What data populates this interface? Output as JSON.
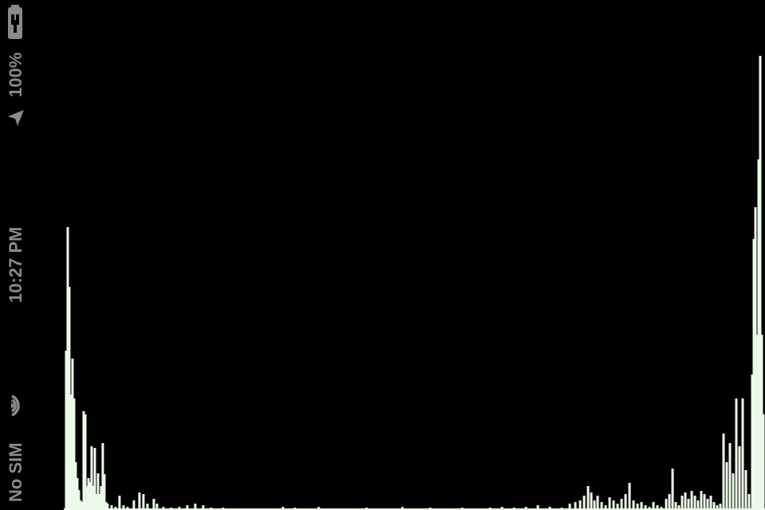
{
  "status_bar": {
    "carrier": "No SIM",
    "time": "10:27 PM",
    "battery": "100%",
    "icons": [
      "wifi-icon",
      "location-icon",
      "battery-charging-icon"
    ],
    "text_color": "#8a8a8a"
  },
  "colors": {
    "background": "#000000",
    "bar": "#ecfbe9"
  },
  "chart_data": {
    "type": "bar",
    "title": "",
    "xlabel": "",
    "ylabel": "",
    "ylim": [
      0,
      640
    ],
    "bar_values": [
      [
        83,
        200
      ],
      [
        85,
        355
      ],
      [
        87,
        280
      ],
      [
        89,
        145
      ],
      [
        91,
        190
      ],
      [
        93,
        140
      ],
      [
        95,
        60
      ],
      [
        97,
        40
      ],
      [
        99,
        25
      ],
      [
        101,
        12
      ],
      [
        103,
        10
      ],
      [
        105,
        124
      ],
      [
        107,
        120
      ],
      [
        109,
        30
      ],
      [
        111,
        40
      ],
      [
        113,
        35
      ],
      [
        115,
        80
      ],
      [
        117,
        30
      ],
      [
        119,
        78
      ],
      [
        121,
        20
      ],
      [
        123,
        46
      ],
      [
        125,
        20
      ],
      [
        127,
        30
      ],
      [
        129,
        84
      ],
      [
        131,
        45
      ],
      [
        133,
        10
      ],
      [
        135,
        8
      ],
      [
        140,
        6
      ],
      [
        145,
        4
      ],
      [
        150,
        18
      ],
      [
        155,
        6
      ],
      [
        160,
        4
      ],
      [
        168,
        12
      ],
      [
        175,
        22
      ],
      [
        180,
        20
      ],
      [
        185,
        8
      ],
      [
        193,
        14
      ],
      [
        197,
        8
      ],
      [
        205,
        4
      ],
      [
        215,
        3
      ],
      [
        225,
        4
      ],
      [
        235,
        6
      ],
      [
        245,
        8
      ],
      [
        255,
        6
      ],
      [
        265,
        3
      ],
      [
        280,
        3
      ],
      [
        300,
        2
      ],
      [
        320,
        2
      ],
      [
        340,
        2
      ],
      [
        355,
        4
      ],
      [
        370,
        3
      ],
      [
        390,
        2
      ],
      [
        400,
        4
      ],
      [
        420,
        2
      ],
      [
        440,
        2
      ],
      [
        460,
        3
      ],
      [
        480,
        2
      ],
      [
        505,
        4
      ],
      [
        520,
        2
      ],
      [
        540,
        3
      ],
      [
        560,
        2
      ],
      [
        580,
        3
      ],
      [
        600,
        2
      ],
      [
        615,
        3
      ],
      [
        630,
        4
      ],
      [
        645,
        3
      ],
      [
        660,
        4
      ],
      [
        675,
        6
      ],
      [
        690,
        4
      ],
      [
        705,
        3
      ],
      [
        715,
        8
      ],
      [
        722,
        10
      ],
      [
        728,
        12
      ],
      [
        733,
        18
      ],
      [
        738,
        30
      ],
      [
        742,
        22
      ],
      [
        746,
        12
      ],
      [
        750,
        18
      ],
      [
        755,
        10
      ],
      [
        760,
        6
      ],
      [
        765,
        16
      ],
      [
        770,
        12
      ],
      [
        775,
        8
      ],
      [
        780,
        14
      ],
      [
        785,
        20
      ],
      [
        790,
        34
      ],
      [
        795,
        12
      ],
      [
        800,
        8
      ],
      [
        805,
        10
      ],
      [
        810,
        6
      ],
      [
        815,
        4
      ],
      [
        820,
        10
      ],
      [
        825,
        6
      ],
      [
        830,
        4
      ],
      [
        836,
        14
      ],
      [
        840,
        20
      ],
      [
        844,
        52
      ],
      [
        848,
        10
      ],
      [
        852,
        6
      ],
      [
        856,
        18
      ],
      [
        860,
        22
      ],
      [
        864,
        14
      ],
      [
        868,
        24
      ],
      [
        872,
        18
      ],
      [
        876,
        12
      ],
      [
        880,
        24
      ],
      [
        884,
        20
      ],
      [
        888,
        14
      ],
      [
        892,
        18
      ],
      [
        896,
        10
      ],
      [
        900,
        6
      ],
      [
        904,
        8
      ],
      [
        908,
        96
      ],
      [
        912,
        60
      ],
      [
        916,
        84
      ],
      [
        920,
        46
      ],
      [
        924,
        140
      ],
      [
        928,
        80
      ],
      [
        932,
        140
      ],
      [
        936,
        50
      ],
      [
        940,
        20
      ],
      [
        944,
        170
      ],
      [
        946,
        340
      ],
      [
        948,
        380
      ],
      [
        950,
        220
      ],
      [
        952,
        440
      ],
      [
        954,
        570
      ],
      [
        956,
        220
      ],
      [
        958,
        120
      ]
    ]
  }
}
